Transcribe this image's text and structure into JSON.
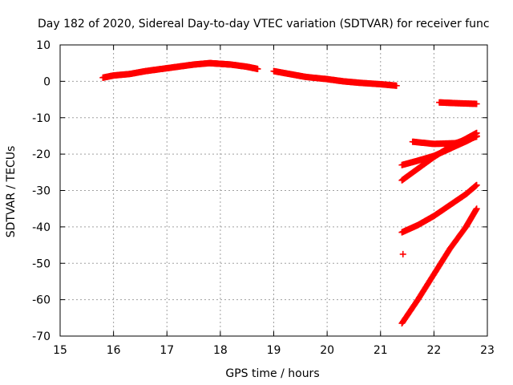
{
  "chart_data": {
    "type": "scatter",
    "title": "Day 182 of 2020, Sidereal Day-to-day VTEC variation (SDTVAR) for receiver func",
    "xlabel": "GPS time / hours",
    "ylabel": "SDTVAR / TECUs",
    "xlim": [
      15,
      23
    ],
    "ylim": [
      -70,
      10
    ],
    "xticks": [
      15,
      16,
      17,
      18,
      19,
      20,
      21,
      22,
      23
    ],
    "yticks": [
      10,
      0,
      -10,
      -20,
      -30,
      -40,
      -50,
      -60,
      -70
    ],
    "grid": true,
    "marker": "plus",
    "color": "#ff0000",
    "series": [
      {
        "x": [
          15.8,
          16.0,
          16.3,
          16.6,
          16.9,
          17.2,
          17.5,
          17.8,
          18.0,
          18.2,
          18.5,
          18.7
        ],
        "y": [
          1.0,
          1.6,
          2.0,
          2.8,
          3.4,
          4.0,
          4.6,
          5.0,
          4.8,
          4.6,
          4.0,
          3.4
        ]
      },
      {
        "x": [
          19.0,
          19.3,
          19.6,
          20.0,
          20.3,
          20.6,
          21.0,
          21.3
        ],
        "y": [
          2.8,
          2.0,
          1.2,
          0.6,
          0.0,
          -0.4,
          -0.8,
          -1.2
        ]
      },
      {
        "x": [
          22.1,
          22.4,
          22.8
        ],
        "y": [
          -5.8,
          -6.0,
          -6.2
        ]
      },
      {
        "x": [
          21.4,
          21.7,
          22.0,
          22.3,
          22.6,
          22.8
        ],
        "y": [
          -23.0,
          -21.8,
          -20.5,
          -18.5,
          -16.5,
          -15.0
        ]
      },
      {
        "x": [
          21.4,
          21.7,
          22.0,
          22.3,
          22.6,
          22.8
        ],
        "y": [
          -27.2,
          -24.0,
          -20.8,
          -18.0,
          -15.8,
          -14.2
        ]
      },
      {
        "x": [
          21.6,
          22.0,
          22.4,
          22.8
        ],
        "y": [
          -16.6,
          -17.2,
          -17.0,
          -15.2
        ]
      },
      {
        "x": [
          21.4,
          21.7,
          22.0,
          22.3,
          22.6,
          22.8
        ],
        "y": [
          -41.5,
          -39.5,
          -37.0,
          -34.0,
          -31.0,
          -28.5
        ]
      },
      {
        "x": [
          21.4,
          21.7,
          22.0,
          22.3,
          22.6,
          22.8
        ],
        "y": [
          -66.5,
          -60.0,
          -53.0,
          -46.0,
          -40.0,
          -35.0
        ]
      },
      {
        "x": [
          21.42
        ],
        "y": [
          -47.5
        ]
      }
    ]
  }
}
